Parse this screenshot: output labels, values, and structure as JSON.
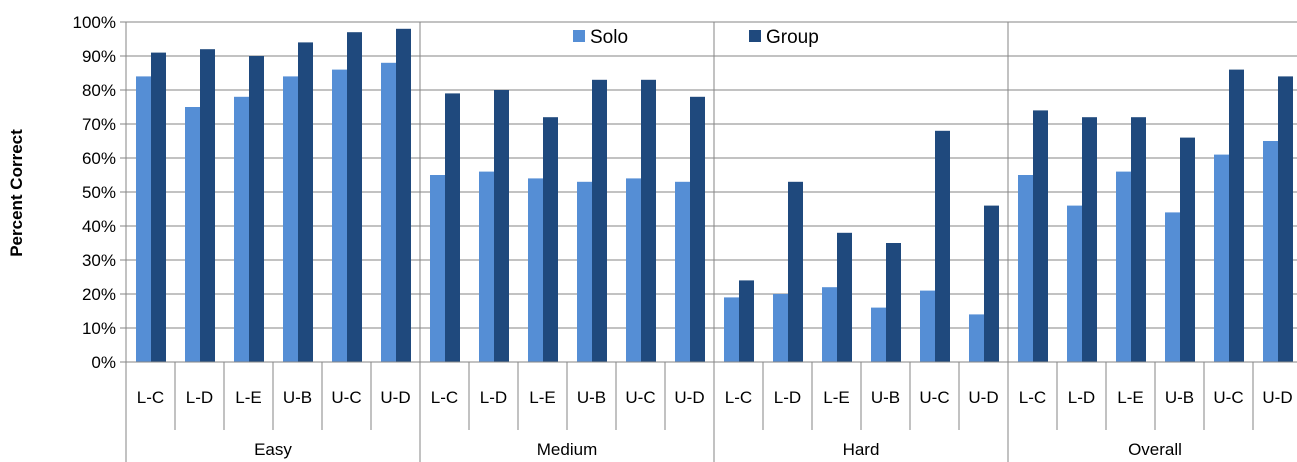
{
  "chart_data": {
    "type": "bar",
    "title": "",
    "ylabel": "Percent Correct",
    "xlabel": "",
    "ylim": [
      0,
      100
    ],
    "yticks": [
      "0%",
      "10%",
      "20%",
      "30%",
      "40%",
      "50%",
      "60%",
      "70%",
      "80%",
      "90%",
      "100%"
    ],
    "grid": true,
    "legend_position": "top-center",
    "groups": [
      "Easy",
      "Medium",
      "Hard",
      "Overall"
    ],
    "subcategories": [
      "L-C",
      "L-D",
      "L-E",
      "U-B",
      "U-C",
      "U-D"
    ],
    "series": [
      {
        "name": "Solo",
        "color": "#558ed5",
        "values": [
          [
            84,
            75,
            78,
            84,
            86,
            88
          ],
          [
            55,
            56,
            54,
            53,
            54,
            53
          ],
          [
            19,
            20,
            22,
            16,
            21,
            14
          ],
          [
            55,
            46,
            56,
            44,
            61,
            65
          ]
        ]
      },
      {
        "name": "Group",
        "color": "#1f497d",
        "values": [
          [
            91,
            92,
            90,
            94,
            97,
            98
          ],
          [
            79,
            80,
            72,
            83,
            83,
            78
          ],
          [
            24,
            53,
            38,
            35,
            68,
            46
          ],
          [
            74,
            72,
            72,
            66,
            86,
            84
          ]
        ]
      }
    ]
  }
}
